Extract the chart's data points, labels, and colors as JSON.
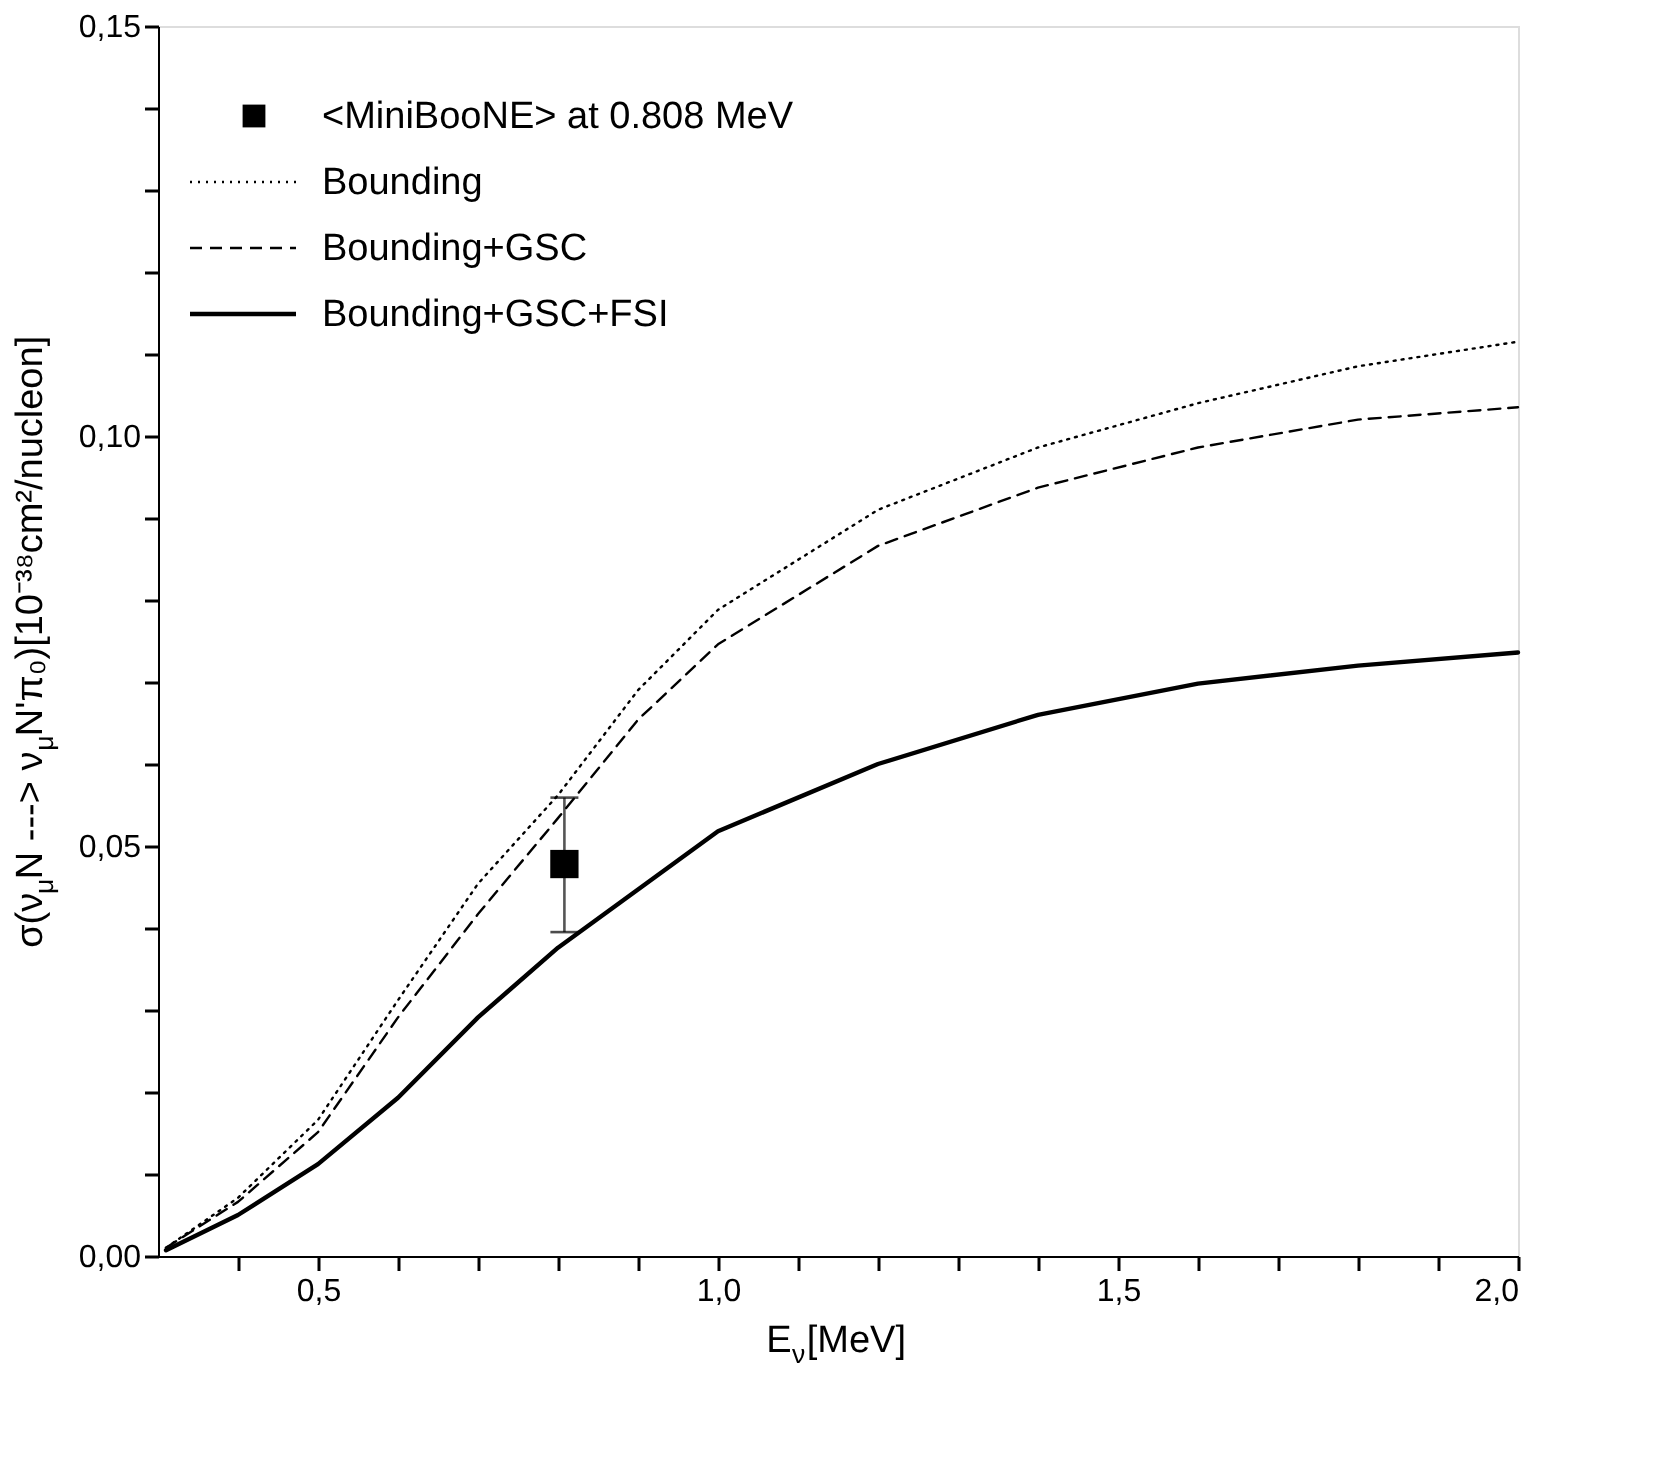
{
  "chart_data": {
    "type": "line",
    "xlabel": "E$_{ν}$[MeV]",
    "ylabel": "σ(ν$_{μ}$N ---> ν$_{μ}$N'π₀)[10⁻³⁸cm²/nucleon]",
    "xlim": [
      0.3,
      2.0
    ],
    "xticks": [
      {
        "value": 0.4,
        "label": null
      },
      {
        "value": 0.5,
        "label": "0,5"
      },
      {
        "value": 0.6,
        "label": null
      },
      {
        "value": 0.7,
        "label": null
      },
      {
        "value": 0.8,
        "label": null
      },
      {
        "value": 0.9,
        "label": null
      },
      {
        "value": 1.0,
        "label": "1,0"
      },
      {
        "value": 1.1,
        "label": null
      },
      {
        "value": 1.2,
        "label": null
      },
      {
        "value": 1.3,
        "label": null
      },
      {
        "value": 1.4,
        "label": null
      },
      {
        "value": 1.5,
        "label": "1,5"
      },
      {
        "value": 1.6,
        "label": null
      },
      {
        "value": 1.7,
        "label": null
      },
      {
        "value": 1.8,
        "label": null
      },
      {
        "value": 1.9,
        "label": null
      },
      {
        "value": 2.0,
        "label": "2,0"
      }
    ],
    "ylim": [
      0,
      0.15
    ],
    "yticks": [
      {
        "value": 0,
        "label": "0,00"
      },
      {
        "value": 0.01,
        "label": null
      },
      {
        "value": 0.02,
        "label": null
      },
      {
        "value": 0.03,
        "label": null
      },
      {
        "value": 0.04,
        "label": null
      },
      {
        "value": 0.05,
        "label": "0,05"
      },
      {
        "value": 0.06,
        "label": null
      },
      {
        "value": 0.07,
        "label": null
      },
      {
        "value": 0.08,
        "label": null
      },
      {
        "value": 0.09,
        "label": null
      },
      {
        "value": 0.1,
        "label": "0,10"
      },
      {
        "value": 0.11,
        "label": null
      },
      {
        "value": 0.12,
        "label": null
      },
      {
        "value": 0.13,
        "label": null
      },
      {
        "value": 0.14,
        "label": null
      },
      {
        "value": 0.15,
        "label": "0,15"
      }
    ],
    "grid": false,
    "legend": "top left",
    "series": [
      {
        "name": "<MiniBooNE> at 0.808 MeV",
        "type": "scatter",
        "marker": "square",
        "color": "#000000",
        "x": [
          0.808
        ],
        "values": [
          0.0478
        ],
        "errors": [
          [
            0.0395,
            0.0559
          ]
        ]
      },
      {
        "name": "Bounding",
        "line_style": "dotted",
        "marker": "none",
        "color": "#000000",
        "x": [
          0.31,
          0.4,
          0.5,
          0.6,
          0.7,
          0.8,
          0.9,
          1.0,
          1.2,
          1.4,
          1.6,
          1.8,
          2.0
        ],
        "values": [
          0.001,
          0.0071,
          0.0166,
          0.0312,
          0.0454,
          0.0562,
          0.069,
          0.0788,
          0.091,
          0.0986,
          0.104,
          0.1085,
          0.1115
        ]
      },
      {
        "name": "Bounding+GSC",
        "line_style": "dashed",
        "marker": "none",
        "color": "#000000",
        "x": [
          0.31,
          0.4,
          0.5,
          0.6,
          0.7,
          0.8,
          0.9,
          1.0,
          1.2,
          1.4,
          1.6,
          1.8,
          2.0
        ],
        "values": [
          0.001,
          0.0066,
          0.0151,
          0.0291,
          0.0417,
          0.0534,
          0.0654,
          0.0746,
          0.0866,
          0.0937,
          0.0986,
          0.102,
          0.1035
        ]
      },
      {
        "name": "Bounding+GSC+FSI",
        "line_style": "solid",
        "marker": "none",
        "color": "#000000",
        "x": [
          0.31,
          0.4,
          0.5,
          0.6,
          0.7,
          0.8,
          0.9,
          1.0,
          1.2,
          1.4,
          1.6,
          1.8,
          2.0
        ],
        "values": [
          0.0007,
          0.005,
          0.0112,
          0.0193,
          0.0291,
          0.0376,
          0.0447,
          0.0518,
          0.06,
          0.066,
          0.0698,
          0.072,
          0.0736
        ]
      }
    ]
  }
}
